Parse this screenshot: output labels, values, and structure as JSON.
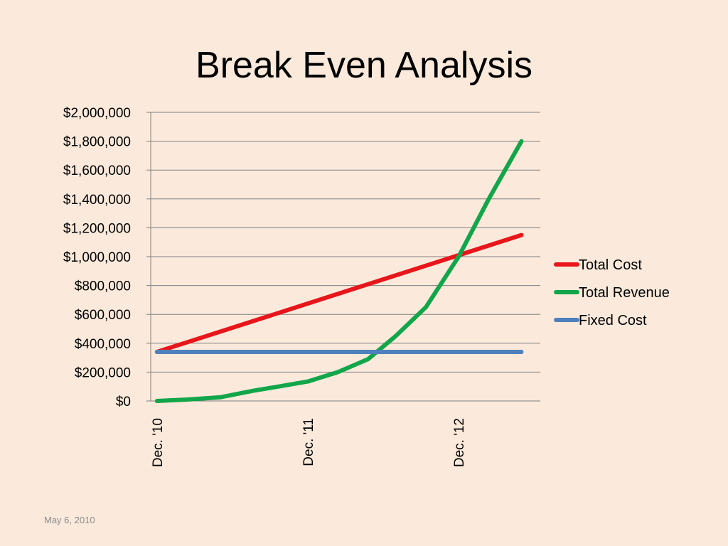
{
  "slide": {
    "title": "Break Even Analysis",
    "footer_date": "May 6, 2010"
  },
  "chart_data": {
    "type": "line",
    "title": "Break Even Analysis",
    "xlabel": "",
    "ylabel": "",
    "x_tick_labels": [
      "Dec. '10",
      "Dec. '11",
      "Dec. '12"
    ],
    "x_tick_positions": [
      0,
      12,
      24
    ],
    "x_range": [
      -0.5,
      30.5
    ],
    "y_tick_labels": [
      "$0",
      "$200,000",
      "$400,000",
      "$600,000",
      "$800,000",
      "$1,000,000",
      "$1,200,000",
      "$1,400,000",
      "$1,600,000",
      "$1,800,000",
      "$2,000,000"
    ],
    "ylim": [
      0,
      2000000
    ],
    "y_step": 200000,
    "grid": "horizontal",
    "legend_position": "right",
    "series": [
      {
        "name": "Total Cost",
        "color": "#E8161B",
        "x": [
          0,
          29
        ],
        "values": [
          340000,
          1150000
        ]
      },
      {
        "name": "Total Revenue",
        "color": "#12A64A",
        "x": [
          0,
          2.4,
          5,
          7.6,
          10,
          12,
          14.4,
          16.8,
          19,
          21.4,
          24,
          26.4,
          29
        ],
        "values": [
          0,
          10000,
          25000,
          70000,
          105000,
          135000,
          200000,
          290000,
          450000,
          650000,
          1000000,
          1400000,
          1800000
        ]
      },
      {
        "name": "Fixed Cost",
        "color": "#4F81BD",
        "x": [
          0,
          29
        ],
        "values": [
          340000,
          340000
        ]
      }
    ]
  }
}
